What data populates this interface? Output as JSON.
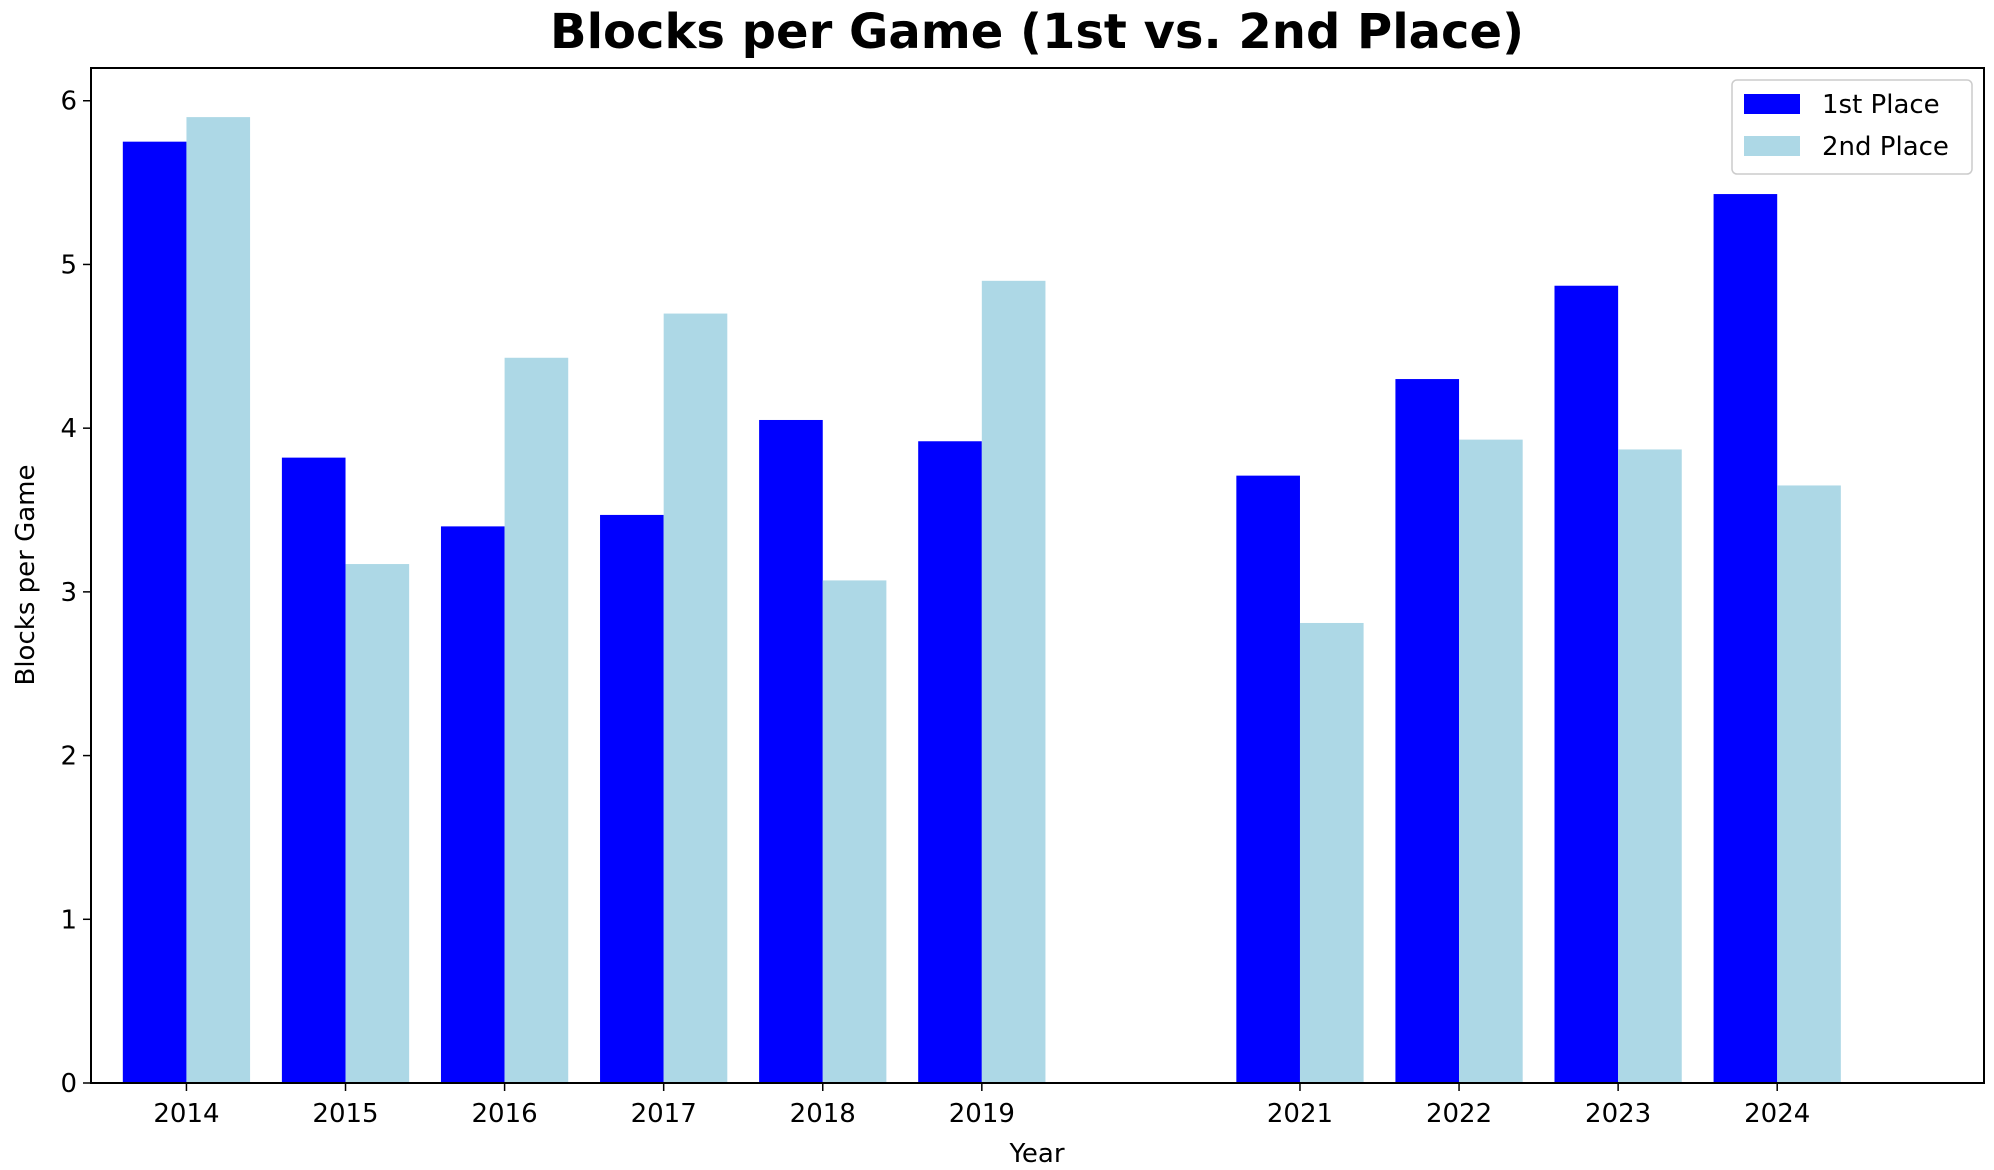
{
  "chart_data": {
    "type": "bar",
    "title": "Blocks per Game (1st vs. 2nd Place)",
    "xlabel": "Year",
    "ylabel": "Blocks per Game",
    "x": [
      2014,
      2015,
      2016,
      2017,
      2018,
      2019,
      2021,
      2022,
      2023,
      2024
    ],
    "x_ticks": [
      "2014",
      "2015",
      "2016",
      "2017",
      "2018",
      "2019",
      "2021",
      "2022",
      "2023",
      "2024"
    ],
    "xlim": [
      2013.4,
      2025.3
    ],
    "ylim": [
      0,
      6.2
    ],
    "y_ticks": [
      0,
      1,
      2,
      3,
      4,
      5,
      6
    ],
    "series": [
      {
        "name": "1st Place",
        "color": "#0000ff",
        "values": [
          5.75,
          3.82,
          3.4,
          3.47,
          4.05,
          3.92,
          3.71,
          4.3,
          4.87,
          5.43
        ]
      },
      {
        "name": "2nd Place",
        "color": "#add8e6",
        "values": [
          5.9,
          3.17,
          4.43,
          4.7,
          3.07,
          4.9,
          2.81,
          3.93,
          3.87,
          3.65
        ]
      }
    ],
    "grid": false,
    "legend_position": "top-right"
  }
}
